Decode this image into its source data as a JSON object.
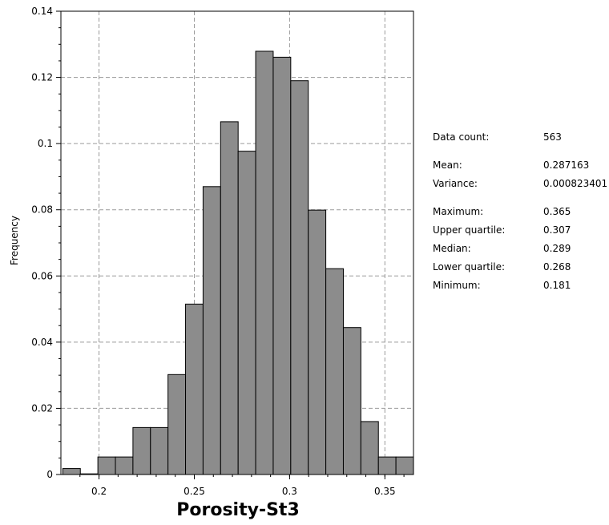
{
  "chart_data": {
    "type": "bar",
    "xlabel": "Porosity-St3",
    "ylabel": "Frequency",
    "xlim": [
      0.18,
      0.365
    ],
    "ylim": [
      0,
      0.14
    ],
    "xticks": [
      0.2,
      0.25,
      0.3,
      0.35
    ],
    "yticks": [
      0,
      0.02,
      0.04,
      0.06,
      0.08,
      0.1,
      0.12,
      0.14
    ],
    "grid": true,
    "bin_width": 0.0092,
    "bins": [
      {
        "x0": 0.181,
        "x1": 0.1902,
        "value": 0.0018
      },
      {
        "x0": 0.1902,
        "x1": 0.1994,
        "value": 0.0002
      },
      {
        "x0": 0.1994,
        "x1": 0.2086,
        "value": 0.0053
      },
      {
        "x0": 0.2086,
        "x1": 0.2178,
        "value": 0.0053
      },
      {
        "x0": 0.2178,
        "x1": 0.227,
        "value": 0.0142
      },
      {
        "x0": 0.227,
        "x1": 0.2362,
        "value": 0.0142
      },
      {
        "x0": 0.2362,
        "x1": 0.2454,
        "value": 0.0302
      },
      {
        "x0": 0.2454,
        "x1": 0.2546,
        "value": 0.0515
      },
      {
        "x0": 0.2546,
        "x1": 0.2638,
        "value": 0.087
      },
      {
        "x0": 0.2638,
        "x1": 0.273,
        "value": 0.1066
      },
      {
        "x0": 0.273,
        "x1": 0.2822,
        "value": 0.0977
      },
      {
        "x0": 0.2822,
        "x1": 0.2914,
        "value": 0.1279
      },
      {
        "x0": 0.2914,
        "x1": 0.3006,
        "value": 0.1261
      },
      {
        "x0": 0.3006,
        "x1": 0.3098,
        "value": 0.119
      },
      {
        "x0": 0.3098,
        "x1": 0.319,
        "value": 0.0799
      },
      {
        "x0": 0.319,
        "x1": 0.3282,
        "value": 0.0622
      },
      {
        "x0": 0.3282,
        "x1": 0.3374,
        "value": 0.0444
      },
      {
        "x0": 0.3374,
        "x1": 0.3466,
        "value": 0.016
      },
      {
        "x0": 0.3466,
        "x1": 0.3558,
        "value": 0.0053
      },
      {
        "x0": 0.3558,
        "x1": 0.365,
        "value": 0.0053
      }
    ],
    "bar_color": "#8c8c8c",
    "grid_color": "#9a9a9a"
  },
  "stats": [
    {
      "label": "Data count:",
      "value": "563",
      "group": 0
    },
    {
      "label": "Mean:",
      "value": "0.287163",
      "group": 1
    },
    {
      "label": "Variance:",
      "value": "0.000823401",
      "group": 1
    },
    {
      "label": "Maximum:",
      "value": "0.365",
      "group": 2
    },
    {
      "label": "Upper quartile:",
      "value": "0.307",
      "group": 2
    },
    {
      "label": "Median:",
      "value": "0.289",
      "group": 2
    },
    {
      "label": "Lower quartile:",
      "value": "0.268",
      "group": 2
    },
    {
      "label": "Minimum:",
      "value": "0.181",
      "group": 2
    }
  ]
}
